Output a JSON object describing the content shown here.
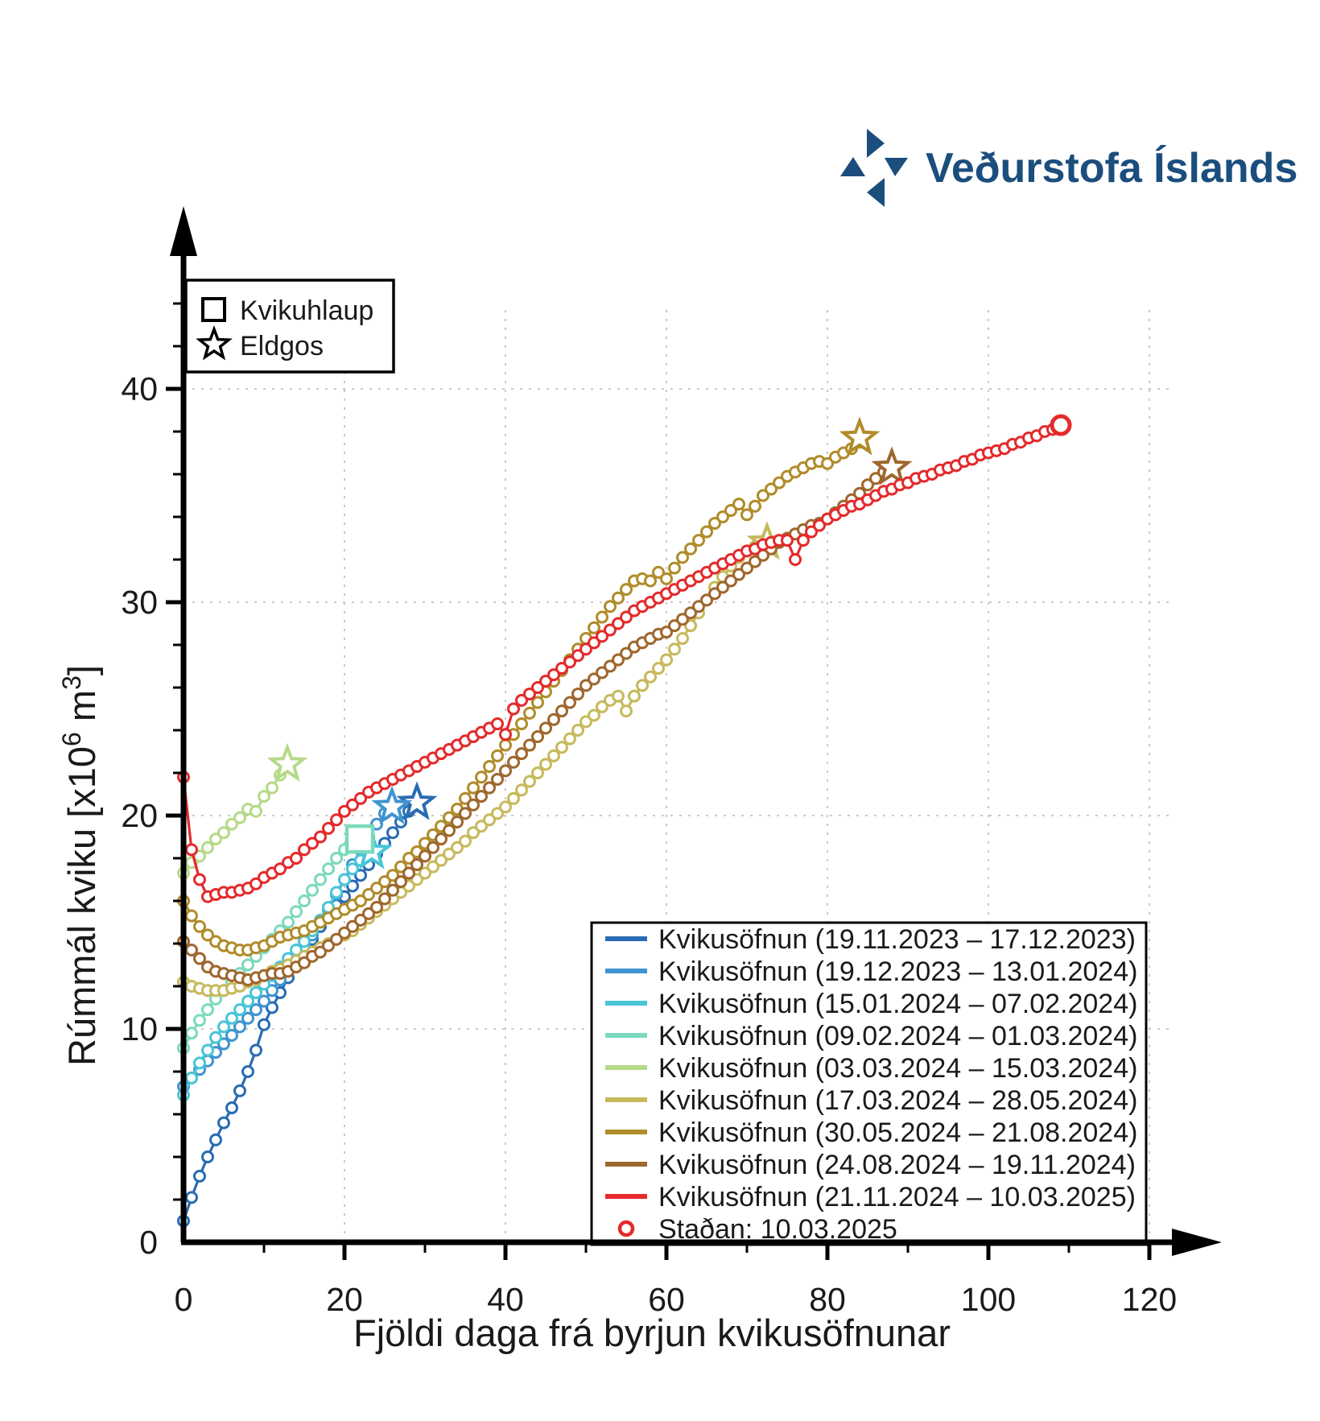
{
  "brand": {
    "wordmark": "Veðurstofa Íslands",
    "logo_color": "#1b4e7d"
  },
  "chart_data": {
    "type": "line",
    "xlabel": "Fjöldi daga frá byrjun kvikusöfnunar",
    "ylabel": "Rúmmál kviku [x10⁶ m³]",
    "xlim": [
      0,
      128
    ],
    "ylim": [
      0,
      46
    ],
    "x_ticks_major": [
      0,
      20,
      40,
      60,
      80,
      100,
      120
    ],
    "x_ticks_minor": [
      10,
      30,
      50,
      70,
      90,
      110
    ],
    "y_ticks_major": [
      0,
      10,
      20,
      30,
      40
    ],
    "y_minor_step": 2,
    "grid": "dotted-on-major-ticks",
    "legend_position": "lower right",
    "marker_legend": [
      {
        "marker": "square",
        "label": "Kvikuhlaup"
      },
      {
        "marker": "star",
        "label": "Eldgos"
      }
    ],
    "stadan": {
      "label": "Staðan: 10.03.2025",
      "marker": "open-circle",
      "color": "#e42a2c"
    },
    "series": [
      {
        "label": "Kvikusöfnun (19.11.2023 – 17.12.2023)",
        "color": "#2a6cb3",
        "start_day": 0,
        "values": [
          1.0,
          2.1,
          3.1,
          4.0,
          4.8,
          5.6,
          6.3,
          7.1,
          8.0,
          9.0,
          10.2,
          11.0,
          11.7,
          12.4,
          13.0,
          13.6,
          14.2,
          14.8,
          15.3,
          15.8,
          16.2,
          16.7,
          17.2,
          17.7,
          18.2,
          18.7,
          19.2,
          19.7,
          20.2
        ],
        "end_marker": {
          "type": "star",
          "day": 29,
          "value": 20.6
        }
      },
      {
        "label": "Kvikusöfnun (19.12.2023 – 13.01.2024)",
        "color": "#4094cf",
        "start_day": 0,
        "values": [
          7.3,
          7.7,
          8.1,
          8.5,
          8.9,
          9.3,
          9.7,
          10.1,
          10.5,
          10.9,
          11.3,
          11.8,
          12.3,
          12.8,
          13.3,
          13.8,
          14.4,
          15.0,
          15.6,
          16.3,
          17.0,
          17.7,
          18.4,
          19.0,
          19.6,
          20.1
        ],
        "end_marker": {
          "type": "star",
          "day": 25.9,
          "value": 20.4
        }
      },
      {
        "label": "Kvikusöfnun (15.01.2024 – 07.02.2024)",
        "color": "#49c5d8",
        "start_day": 0,
        "values": [
          6.9,
          7.7,
          8.4,
          9.0,
          9.6,
          10.1,
          10.5,
          10.9,
          11.3,
          11.7,
          12.1,
          12.5,
          12.9,
          13.3,
          13.7,
          14.1,
          14.6,
          15.1,
          15.7,
          16.4,
          17.0,
          17.5,
          17.9,
          18.2
        ],
        "end_marker": {
          "type": "star",
          "day": 23.4,
          "value": 18.3
        }
      },
      {
        "label": "Kvikusöfnun (09.02.2024 – 01.03.2024)",
        "color": "#7cd9bd",
        "start_day": 0,
        "values": [
          9.1,
          9.8,
          10.4,
          10.9,
          11.4,
          11.8,
          12.2,
          12.6,
          13.0,
          13.4,
          13.8,
          14.2,
          14.6,
          15.0,
          15.5,
          16.0,
          16.5,
          17.0,
          17.5,
          18.0,
          18.4,
          18.7
        ],
        "end_marker": {
          "type": "square",
          "day": 21.9,
          "value": 18.9
        }
      },
      {
        "label": "Kvikusöfnun (03.03.2024 – 15.03.2024)",
        "color": "#b5da88",
        "start_day": 0,
        "values": [
          17.3,
          17.8,
          18.1,
          18.5,
          18.9,
          19.2,
          19.6,
          19.9,
          20.3,
          20.2,
          20.9,
          21.3,
          21.9
        ],
        "end_marker": {
          "type": "star",
          "day": 12.9,
          "value": 22.4
        }
      },
      {
        "label": "Kvikusöfnun (17.03.2024 – 28.05.2024)",
        "color": "#c6ba5c",
        "start_day": 0,
        "values": [
          12.2,
          12.0,
          11.9,
          11.8,
          11.8,
          11.8,
          11.9,
          12.0,
          12.2,
          12.3,
          12.5,
          12.7,
          12.8,
          13.0,
          13.2,
          13.4,
          13.6,
          13.8,
          14.0,
          14.2,
          14.4,
          14.6,
          14.9,
          15.2,
          15.5,
          15.8,
          16.1,
          16.4,
          16.7,
          17.0,
          17.3,
          17.6,
          17.9,
          18.2,
          18.5,
          18.8,
          19.2,
          19.5,
          19.8,
          20.1,
          20.4,
          20.8,
          21.2,
          21.6,
          22.0,
          22.4,
          22.8,
          23.2,
          23.6,
          24.0,
          24.4,
          24.7,
          25.1,
          25.4,
          25.6,
          24.9,
          25.6,
          26.1,
          26.5,
          26.9,
          27.3,
          27.8,
          28.3,
          28.9,
          29.5,
          30.1,
          30.7,
          31.2,
          31.7,
          32.1,
          32.4,
          32.6,
          32.7
        ],
        "end_marker": {
          "type": "star",
          "day": 72.5,
          "value": 32.8
        }
      },
      {
        "label": "Kvikusöfnun (30.05.2024 – 21.08.2024)",
        "color": "#b08c2a",
        "start_day": 0,
        "values": [
          16.0,
          15.3,
          14.8,
          14.4,
          14.1,
          13.9,
          13.8,
          13.7,
          13.7,
          13.8,
          13.9,
          14.1,
          14.3,
          14.4,
          14.5,
          14.6,
          14.8,
          15.0,
          15.2,
          15.4,
          15.6,
          15.8,
          16.0,
          16.3,
          16.6,
          16.9,
          17.2,
          17.6,
          18.0,
          18.3,
          18.7,
          19.1,
          19.5,
          19.9,
          20.3,
          20.8,
          21.3,
          21.8,
          22.3,
          22.8,
          23.3,
          23.8,
          24.3,
          24.8,
          25.3,
          25.8,
          26.3,
          26.8,
          27.3,
          27.8,
          28.3,
          28.8,
          29.3,
          29.8,
          30.2,
          30.6,
          31.0,
          31.1,
          31.0,
          31.4,
          31.1,
          31.6,
          32.1,
          32.5,
          32.9,
          33.3,
          33.7,
          34.0,
          34.3,
          34.6,
          34.1,
          34.5,
          35.0,
          35.3,
          35.6,
          35.9,
          36.1,
          36.3,
          36.5,
          36.6,
          36.5,
          36.8,
          37.0,
          37.2,
          37.5
        ],
        "end_marker": {
          "type": "star",
          "day": 84,
          "value": 37.7
        }
      },
      {
        "label": "Kvikusöfnun (24.08.2024 – 19.11.2024)",
        "color": "#9e672d",
        "start_day": 0,
        "values": [
          14.1,
          13.7,
          13.3,
          12.9,
          12.7,
          12.6,
          12.5,
          12.4,
          12.3,
          12.4,
          12.5,
          12.6,
          12.6,
          12.7,
          12.9,
          13.1,
          13.4,
          13.6,
          13.9,
          14.2,
          14.5,
          14.8,
          15.1,
          15.4,
          15.7,
          16.1,
          16.5,
          16.9,
          17.3,
          17.7,
          18.1,
          18.5,
          18.9,
          19.3,
          19.7,
          20.1,
          20.5,
          20.9,
          21.3,
          21.7,
          22.1,
          22.5,
          22.9,
          23.3,
          23.7,
          24.1,
          24.5,
          24.9,
          25.3,
          25.7,
          26.1,
          26.4,
          26.7,
          27.0,
          27.3,
          27.6,
          27.9,
          28.1,
          28.3,
          28.5,
          28.6,
          28.9,
          29.2,
          29.5,
          29.8,
          30.1,
          30.4,
          30.7,
          31.0,
          31.3,
          31.6,
          31.9,
          32.2,
          32.5,
          32.8,
          33.0,
          33.2,
          33.4,
          33.6,
          33.7,
          33.9,
          34.2,
          34.5,
          34.8,
          35.1,
          35.5,
          35.8,
          36.1
        ],
        "end_marker": {
          "type": "star",
          "day": 88,
          "value": 36.3
        }
      },
      {
        "label": "Kvikusöfnun (21.11.2024 – 10.03.2025)",
        "color": "#e42a2c",
        "start_day": 0,
        "values": [
          21.8,
          18.4,
          17.0,
          16.2,
          16.3,
          16.4,
          16.4,
          16.5,
          16.6,
          16.8,
          17.1,
          17.3,
          17.5,
          17.8,
          18.0,
          18.4,
          18.7,
          19.0,
          19.4,
          19.8,
          20.2,
          20.5,
          20.8,
          21.1,
          21.3,
          21.5,
          21.7,
          21.9,
          22.1,
          22.3,
          22.5,
          22.7,
          22.9,
          23.1,
          23.3,
          23.5,
          23.7,
          23.9,
          24.1,
          24.3,
          23.8,
          25.0,
          25.4,
          25.7,
          26.0,
          26.3,
          26.6,
          26.9,
          27.2,
          27.5,
          27.8,
          28.1,
          28.4,
          28.7,
          29.0,
          29.3,
          29.6,
          29.8,
          30.0,
          30.2,
          30.4,
          30.6,
          30.8,
          31.0,
          31.2,
          31.4,
          31.6,
          31.8,
          32.0,
          32.2,
          32.4,
          32.5,
          32.7,
          32.8,
          32.9,
          32.9,
          32.0,
          32.9,
          33.3,
          33.6,
          33.9,
          34.1,
          34.3,
          34.5,
          34.6,
          34.8,
          35.0,
          35.2,
          35.3,
          35.5,
          35.6,
          35.8,
          35.9,
          36.0,
          36.2,
          36.3,
          36.4,
          36.6,
          36.7,
          36.9,
          37.0,
          37.1,
          37.2,
          37.4,
          37.5,
          37.7,
          37.8,
          38.0,
          38.1,
          38.3
        ],
        "end_marker": {
          "type": "open-circle",
          "day": 109,
          "value": 38.3
        }
      }
    ]
  }
}
